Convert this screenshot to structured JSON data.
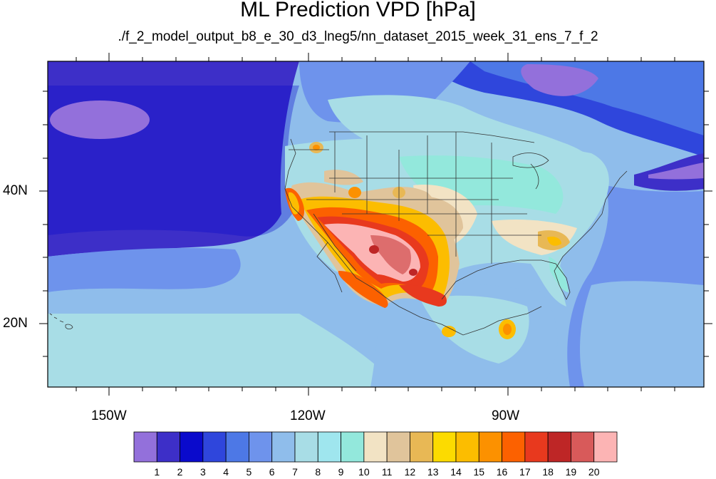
{
  "title": "ML Prediction VPD [hPa]",
  "subtitle": "./f_2_model_output_b8_e_30_d3_lneg5/nn_dataset_2015_week_31_ens_7_f_2",
  "lon_labels": [
    "150W",
    "120W",
    "90W"
  ],
  "lat_labels": [
    "40N",
    "20N"
  ],
  "colorbar": {
    "ticks": [
      "1",
      "2",
      "3",
      "4",
      "5",
      "6",
      "7",
      "8",
      "9",
      "10",
      "11",
      "12",
      "13",
      "14",
      "15",
      "16",
      "17",
      "18",
      "19",
      "20"
    ],
    "colors": [
      "#9370db",
      "#3d2fc8",
      "#0a0acc",
      "#2f46dc",
      "#4d78e6",
      "#6e93ec",
      "#8fbdeb",
      "#a8dde6",
      "#9fe6ee",
      "#93e8dc",
      "#f2e3c4",
      "#e0c49b",
      "#e8b855",
      "#fcdb00",
      "#fcbd00",
      "#fc9100",
      "#fc6100",
      "#e8391e",
      "#be2626",
      "#d85a5a",
      "#fcb4b4"
    ]
  }
}
